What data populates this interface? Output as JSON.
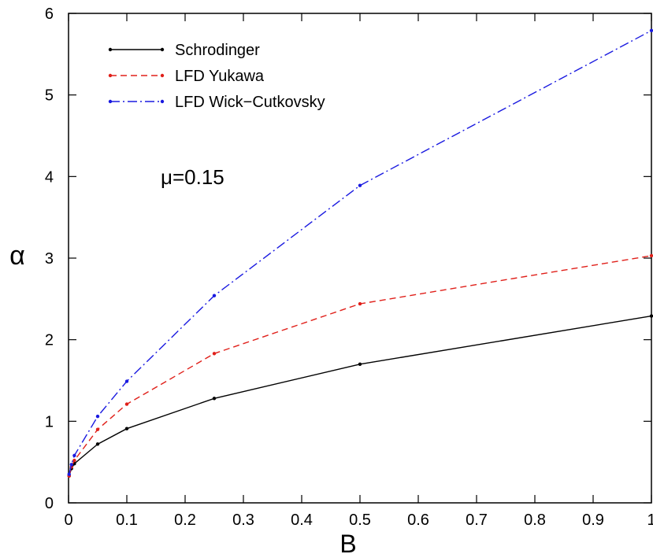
{
  "chart_data": {
    "type": "line",
    "title": "",
    "xlabel": "B",
    "ylabel": "α",
    "xlim": [
      0,
      1
    ],
    "ylim": [
      0,
      6
    ],
    "xticks": [
      0,
      0.1,
      0.2,
      0.3,
      0.4,
      0.5,
      0.6,
      0.7,
      0.8,
      0.9,
      1
    ],
    "xtick_labels": [
      "0",
      "0.1",
      "0.2",
      "0.3",
      "0.4",
      "0.5",
      "0.6",
      "0.7",
      "0.8",
      "0.9",
      "1"
    ],
    "yticks": [
      0,
      1,
      2,
      3,
      4,
      5,
      6
    ],
    "ytick_labels": [
      "0",
      "1",
      "2",
      "3",
      "4",
      "5",
      "6"
    ],
    "grid": false,
    "legend_position": "top-left",
    "annotation": "μ=0.15",
    "series": [
      {
        "name": "Schrodinger",
        "color": "#000000",
        "style": "solid",
        "x": [
          0.001,
          0.005,
          0.01,
          0.05,
          0.1,
          0.25,
          0.5,
          1.0
        ],
        "y": [
          0.33,
          0.42,
          0.48,
          0.72,
          0.91,
          1.28,
          1.7,
          2.29
        ]
      },
      {
        "name": "LFD Yukawa",
        "color": "#e0201a",
        "style": "dashed",
        "x": [
          0.001,
          0.005,
          0.01,
          0.05,
          0.1,
          0.25,
          0.5,
          1.0
        ],
        "y": [
          0.33,
          0.44,
          0.52,
          0.9,
          1.21,
          1.83,
          2.44,
          3.03
        ]
      },
      {
        "name": "LFD Wick−Cutkovsky",
        "color": "#1a1ae0",
        "style": "dashdot",
        "x": [
          0.001,
          0.005,
          0.01,
          0.05,
          0.1,
          0.25,
          0.5,
          1.0
        ],
        "y": [
          0.35,
          0.47,
          0.58,
          1.06,
          1.49,
          2.54,
          3.89,
          5.79
        ]
      }
    ]
  }
}
